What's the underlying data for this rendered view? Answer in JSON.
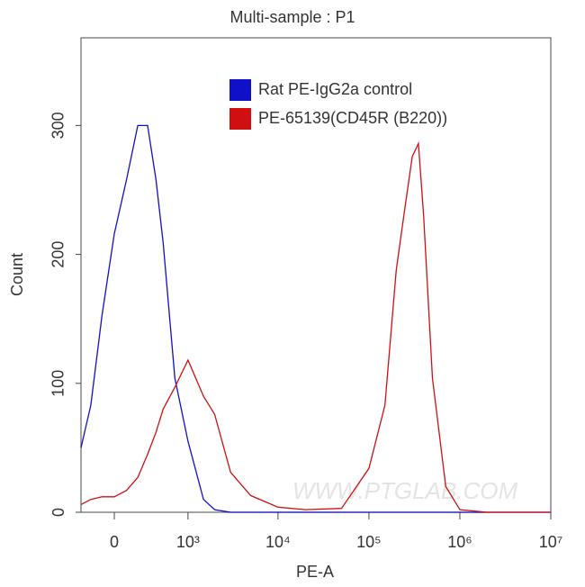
{
  "chart_data": {
    "type": "line",
    "title": "Multi-sample : P1",
    "xlabel": "PE-A",
    "ylabel": "Count",
    "watermark": "WWW.PTGLAB.COM",
    "xscale": "biexponential",
    "x": [
      -300,
      -200,
      -100,
      0,
      100,
      200,
      300,
      400,
      500,
      700,
      1000,
      1500,
      2000,
      3000,
      5000,
      10000,
      20000,
      50000,
      100000,
      150000,
      200000,
      250000,
      300000,
      350000,
      400000,
      500000,
      700000,
      1000000,
      2000000,
      10000000
    ],
    "series": [
      {
        "name": "Rat PE-IgG2a control",
        "color": "#1010c8",
        "values": [
          50,
          83,
          153,
          216,
          258,
          300,
          300,
          258,
          209,
          104,
          55,
          10,
          2,
          0,
          0,
          0,
          0,
          0,
          0,
          0,
          0,
          0,
          0,
          0,
          0,
          0,
          0,
          0,
          0,
          0
        ]
      },
      {
        "name": "PE-65139(CD45R (B220))",
        "color": "#d01010",
        "values": [
          6,
          10,
          12,
          12,
          17,
          27,
          45,
          62,
          80,
          97,
          118,
          90,
          76,
          31,
          13,
          4,
          2,
          3,
          34,
          83,
          188,
          237,
          276,
          286,
          230,
          104,
          20,
          2,
          0,
          0
        ]
      }
    ],
    "xlim": [
      -300,
      10000000
    ],
    "xticks": [
      0,
      {
        "value": 1000,
        "label": "10³"
      },
      {
        "value": 10000,
        "label": "10⁴"
      },
      {
        "value": 100000,
        "label": "10⁵"
      },
      {
        "value": 1000000,
        "label": "10⁶"
      },
      {
        "value": 10000000,
        "label": "10⁷"
      }
    ],
    "ylim": [
      0,
      368
    ],
    "yticks": [
      0,
      100,
      200,
      300
    ],
    "legend": "upper right"
  }
}
